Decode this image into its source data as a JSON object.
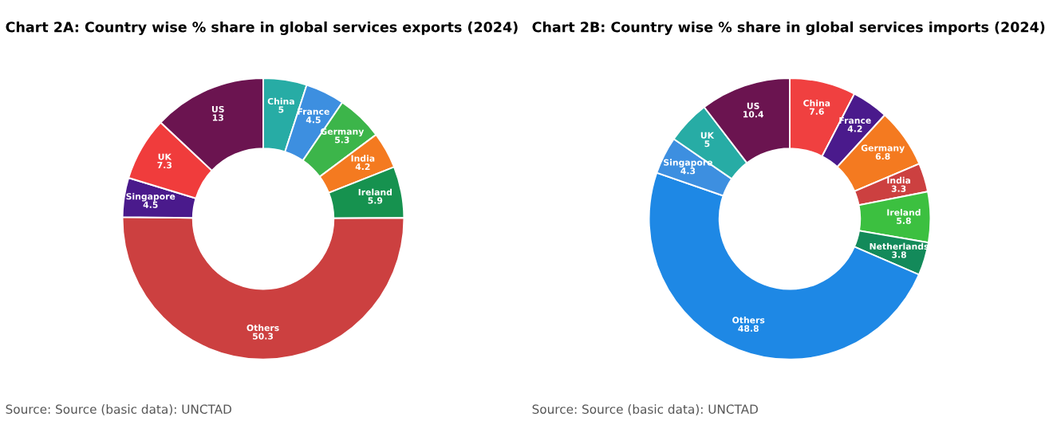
{
  "chart_data": [
    {
      "type": "donut",
      "title": "Chart 2A: Country wise % share in global services exports (2024)",
      "categories": [
        "China",
        "France",
        "Germany",
        "India",
        "Ireland",
        "Others",
        "Singapore",
        "UK",
        "US"
      ],
      "values": [
        5,
        4.5,
        5.3,
        4.2,
        5.9,
        50.3,
        4.5,
        7.3,
        13
      ],
      "colors": [
        "#27aca5",
        "#3d8fe0",
        "#3cb54a",
        "#f47a20",
        "#16924f",
        "#cc4040",
        "#4a1a8c",
        "#f03c3c",
        "#6b1450"
      ],
      "data_labels": true,
      "legend": false,
      "annotations": [
        "Source: Source (basic data): UNCTAD"
      ]
    },
    {
      "type": "donut",
      "title": "Chart 2B: Country wise % share in global services imports (2024)",
      "categories": [
        "China",
        "France",
        "Germany",
        "India",
        "Ireland",
        "Netherlands",
        "Others",
        "Singapore",
        "UK",
        "US"
      ],
      "values": [
        7.6,
        4.2,
        6.8,
        3.3,
        5.8,
        3.8,
        48.8,
        4.3,
        5,
        10.4
      ],
      "colors": [
        "#f04040",
        "#4a1a8c",
        "#f47a20",
        "#cc4040",
        "#3cc040",
        "#138a5a",
        "#1e88e5",
        "#3d8fe0",
        "#27aca5",
        "#6b1450"
      ],
      "data_labels": true,
      "legend": false,
      "annotations": [
        "Source: Source (basic data): UNCTAD"
      ]
    }
  ]
}
